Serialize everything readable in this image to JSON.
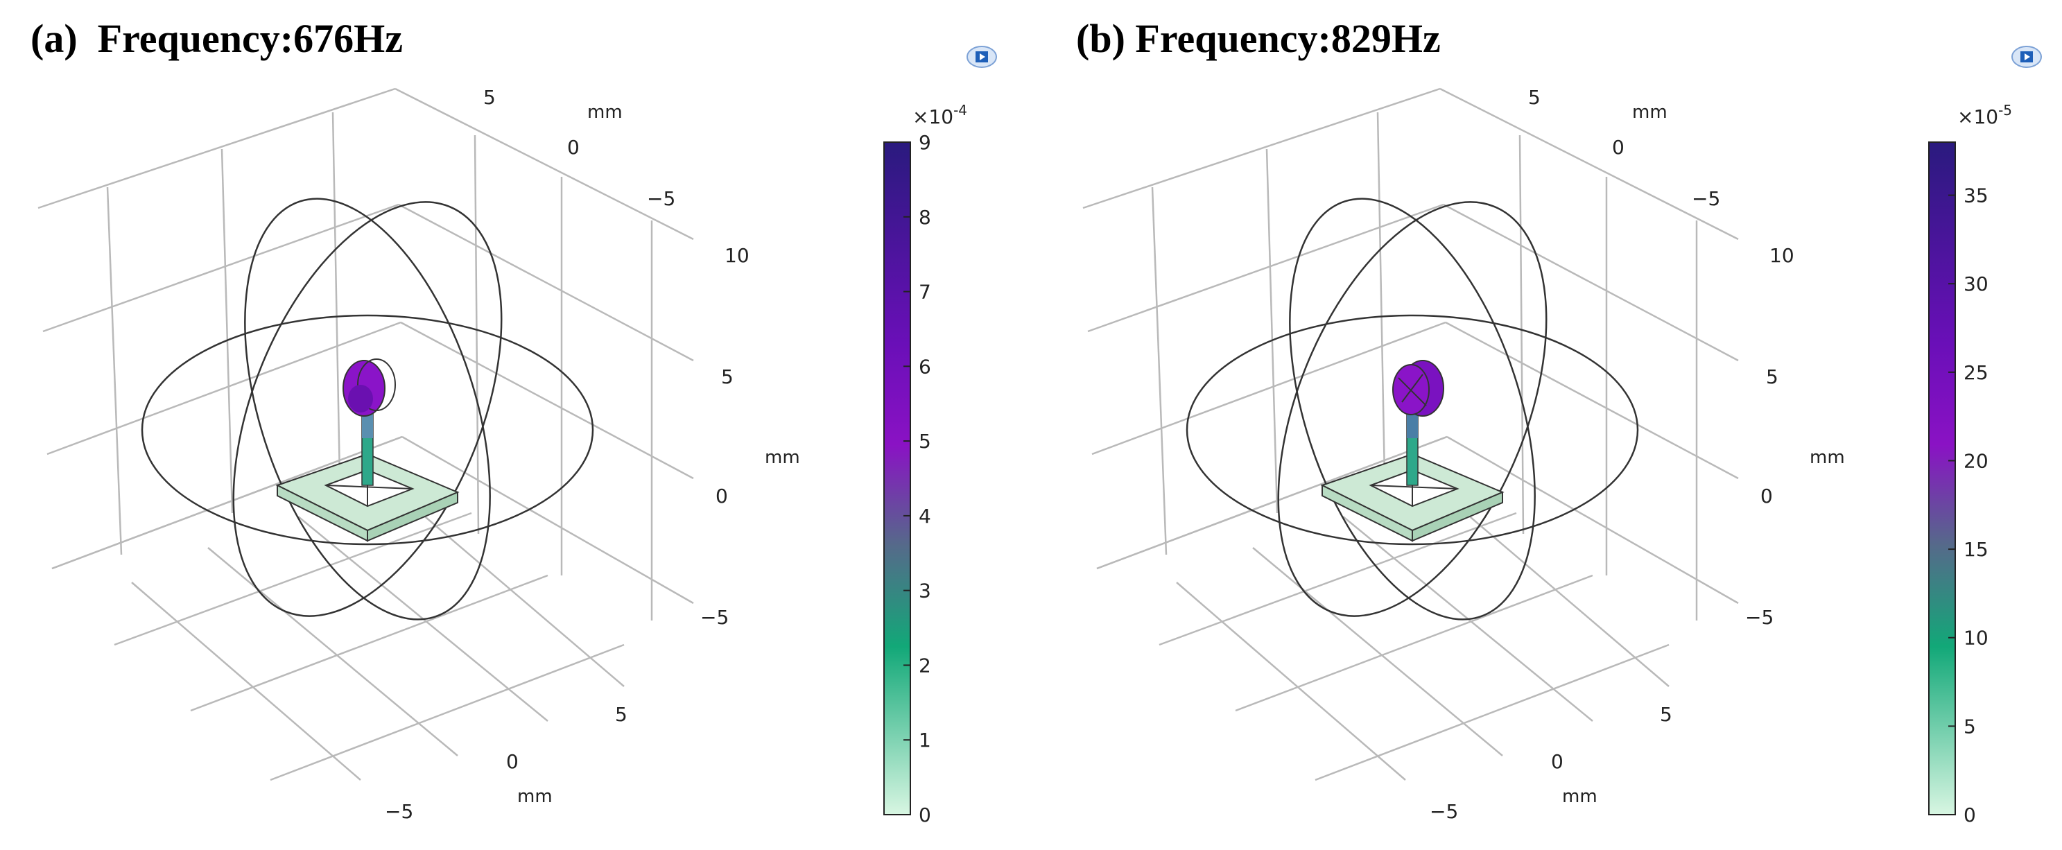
{
  "panels": [
    {
      "label": "(a)",
      "title": "Frequency:676Hz",
      "axes": {
        "y_ticks": [
          "5",
          "0",
          "−5"
        ],
        "y_unit": "mm",
        "z_ticks": [
          "10",
          "5",
          "0",
          "−5"
        ],
        "z_unit": "mm",
        "x_ticks": [
          "5",
          "0",
          "−5"
        ],
        "x_unit": "mm"
      },
      "colorbar": {
        "exponent_base": "×10",
        "exponent": "-4",
        "ticks": [
          "9",
          "8",
          "7",
          "6",
          "5",
          "4",
          "3",
          "2",
          "1",
          "0"
        ],
        "min": 0,
        "max": 9
      }
    },
    {
      "label": "(b)",
      "title": "Frequency:829Hz",
      "axes": {
        "y_ticks": [
          "5",
          "0",
          "−5"
        ],
        "y_unit": "mm",
        "z_ticks": [
          "10",
          "5",
          "0",
          "−5"
        ],
        "z_unit": "mm",
        "x_ticks": [
          "5",
          "0",
          "−5"
        ],
        "x_unit": "mm"
      },
      "colorbar": {
        "exponent_base": "×10",
        "exponent": "-5",
        "ticks": [
          "35",
          "30",
          "25",
          "20",
          "15",
          "10",
          "5",
          "0"
        ],
        "min": 0,
        "max": 38
      }
    }
  ],
  "colors": {
    "colormap_top": "#2a1a7e",
    "colormap_purple": "#8a12c4",
    "colormap_mid": "#556a8a",
    "colormap_green": "#12a878",
    "colormap_bottom": "#d8f6e2",
    "grid": "#b9b9b9",
    "ellipse": "#333333",
    "frame_face": "#cde9d5"
  },
  "icons": [
    "comsol-logo-icon"
  ]
}
